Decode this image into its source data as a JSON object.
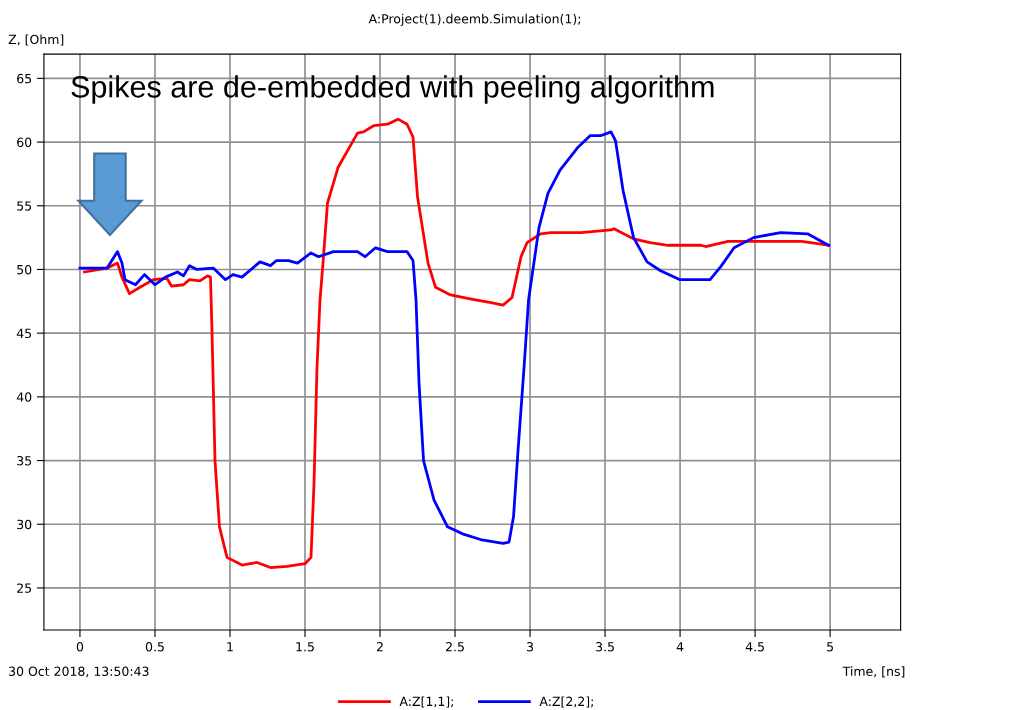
{
  "chart_data": {
    "type": "line",
    "title": "A:Project(1).deemb.Simulation(1);",
    "xlabel": "Time, [ns]",
    "ylabel": "Z, [Ohm]",
    "annotations": [
      "Spikes are de-embedded with peeling algorithm",
      "30 Oct 2018, 13:50:43"
    ],
    "xlim": [
      -0.24,
      5.47
    ],
    "ylim": [
      21.7,
      66.9
    ],
    "xticks": [
      0,
      0.5,
      1,
      1.5,
      2,
      2.5,
      3,
      3.5,
      4,
      4.5,
      5
    ],
    "yticks": [
      25,
      30,
      35,
      40,
      45,
      50,
      55,
      60,
      65
    ],
    "grid": true,
    "legend": "bottom",
    "line_style": "solid",
    "marker": "none",
    "series": [
      {
        "name": "A:Z[1,1];",
        "color": "#ff0000",
        "x": [
          0.03,
          0.18,
          0.25,
          0.28,
          0.33,
          0.4,
          0.49,
          0.58,
          0.61,
          0.69,
          0.73,
          0.8,
          0.85,
          0.87,
          0.88,
          0.9,
          0.93,
          0.98,
          1.08,
          1.18,
          1.27,
          1.38,
          1.5,
          1.54,
          1.56,
          1.58,
          1.6,
          1.62,
          1.65,
          1.72,
          1.85,
          1.89,
          1.96,
          2.05,
          2.12,
          2.18,
          2.22,
          2.25,
          2.32,
          2.37,
          2.47,
          2.6,
          2.74,
          2.82,
          2.88,
          2.94,
          2.98,
          3.07,
          3.14,
          3.34,
          3.54,
          3.56,
          3.69,
          3.8,
          3.92,
          4.14,
          4.17,
          4.32,
          4.45,
          4.81,
          4.99
        ],
        "values": [
          49.8,
          50.1,
          50.5,
          49.4,
          48.1,
          48.6,
          49.2,
          49.3,
          48.7,
          48.8,
          49.2,
          49.1,
          49.5,
          49.4,
          45.2,
          35,
          29.8,
          27.4,
          26.8,
          27,
          26.6,
          26.7,
          26.9,
          27.4,
          33.2,
          42.3,
          47.6,
          50.5,
          55.2,
          58,
          60.7,
          60.8,
          61.3,
          61.4,
          61.8,
          61.4,
          60.4,
          55.7,
          50.5,
          48.6,
          48,
          47.7,
          47.4,
          47.2,
          47.8,
          51,
          52.1,
          52.8,
          52.9,
          52.9,
          53.1,
          53.2,
          52.4,
          52.1,
          51.9,
          51.9,
          51.8,
          52.2,
          52.2,
          52.2,
          51.9
        ]
      },
      {
        "name": "A:Z[2,2];",
        "color": "#0000ff",
        "x": [
          0,
          0.18,
          0.25,
          0.28,
          0.3,
          0.37,
          0.43,
          0.5,
          0.57,
          0.65,
          0.69,
          0.73,
          0.78,
          0.89,
          0.97,
          1.02,
          1.08,
          1.2,
          1.27,
          1.31,
          1.39,
          1.45,
          1.54,
          1.59,
          1.69,
          1.85,
          1.9,
          1.97,
          2.05,
          2.18,
          2.22,
          2.24,
          2.26,
          2.29,
          2.36,
          2.45,
          2.56,
          2.67,
          2.82,
          2.86,
          2.89,
          2.92,
          2.96,
          2.99,
          3.06,
          3.12,
          3.2,
          3.32,
          3.4,
          3.47,
          3.54,
          3.57,
          3.62,
          3.69,
          3.78,
          3.87,
          4.0,
          4.2,
          4.27,
          4.36,
          4.49,
          4.67,
          4.85,
          4.99
        ],
        "values": [
          50.1,
          50.1,
          51.4,
          50.5,
          49.2,
          48.8,
          49.6,
          48.8,
          49.4,
          49.8,
          49.5,
          50.3,
          50,
          50.1,
          49.2,
          49.6,
          49.4,
          50.6,
          50.3,
          50.7,
          50.7,
          50.5,
          51.3,
          51,
          51.4,
          51.4,
          51,
          51.7,
          51.4,
          51.4,
          50.7,
          47.6,
          41.1,
          35,
          31.9,
          29.8,
          29.2,
          28.8,
          28.5,
          28.6,
          30.6,
          35.8,
          42.3,
          47.6,
          53.3,
          56,
          57.8,
          59.6,
          60.5,
          60.5,
          60.8,
          60.1,
          56.2,
          52.5,
          50.6,
          49.9,
          49.2,
          49.2,
          50.2,
          51.7,
          52.5,
          52.9,
          52.8,
          51.9
        ]
      }
    ]
  }
}
